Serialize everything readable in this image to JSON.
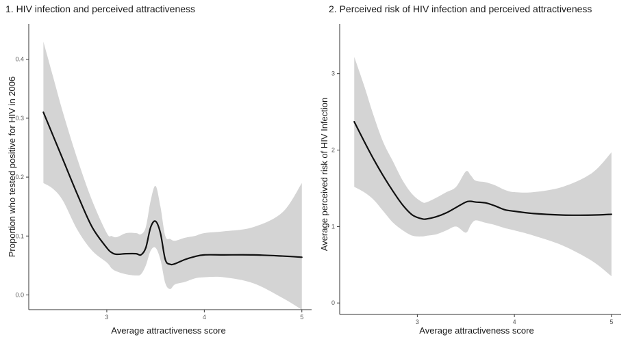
{
  "chart_data": [
    {
      "type": "line",
      "title": "1. HIV infection and perceived attractiveness",
      "xlabel": "Average attractiveness score",
      "ylabel": "Proportion who tested positive for HIV in 2006",
      "xlim": [
        2.2,
        5.1
      ],
      "ylim": [
        -0.025,
        0.46
      ],
      "xticks": [
        3,
        4,
        5
      ],
      "xtick_labels": [
        "3",
        "4",
        "5"
      ],
      "yticks": [
        0.0,
        0.1,
        0.2,
        0.3,
        0.4
      ],
      "ytick_labels": [
        "0.0",
        "0.1",
        "0.2",
        "0.3",
        "0.4"
      ],
      "grid": false,
      "legend": "none",
      "line_color": "#111111",
      "band_color": "#d4d4d4",
      "x": [
        2.35,
        2.45,
        2.55,
        2.7,
        2.85,
        3.0,
        3.05,
        3.1,
        3.2,
        3.3,
        3.35,
        3.4,
        3.45,
        3.5,
        3.55,
        3.6,
        3.65,
        3.7,
        3.8,
        3.9,
        4.0,
        4.2,
        4.5,
        4.8,
        5.0
      ],
      "y": [
        0.31,
        0.27,
        0.23,
        0.17,
        0.115,
        0.08,
        0.072,
        0.069,
        0.07,
        0.07,
        0.068,
        0.08,
        0.115,
        0.125,
        0.105,
        0.06,
        0.052,
        0.053,
        0.06,
        0.065,
        0.068,
        0.068,
        0.068,
        0.066,
        0.064
      ],
      "lower": [
        0.19,
        0.18,
        0.16,
        0.11,
        0.075,
        0.055,
        0.045,
        0.04,
        0.035,
        0.033,
        0.035,
        0.05,
        0.075,
        0.08,
        0.06,
        0.02,
        0.01,
        0.018,
        0.022,
        0.028,
        0.03,
        0.03,
        0.02,
        -0.005,
        -0.03
      ],
      "upper": [
        0.43,
        0.37,
        0.31,
        0.23,
        0.16,
        0.105,
        0.1,
        0.098,
        0.105,
        0.105,
        0.103,
        0.115,
        0.16,
        0.185,
        0.15,
        0.1,
        0.095,
        0.092,
        0.097,
        0.1,
        0.105,
        0.108,
        0.115,
        0.14,
        0.19
      ]
    },
    {
      "type": "line",
      "title": "2. Perceived risk of HIV infection and perceived attractiveness",
      "xlabel": "Average attractiveness score",
      "ylabel": "Average perceived risk of HIV Infection",
      "xlim": [
        2.2,
        5.1
      ],
      "ylim": [
        -0.15,
        3.65
      ],
      "xticks": [
        3,
        4,
        5
      ],
      "xtick_labels": [
        "3",
        "4",
        "5"
      ],
      "yticks": [
        0,
        1,
        2,
        3
      ],
      "ytick_labels": [
        "0",
        "1",
        "2",
        "3"
      ],
      "grid": false,
      "legend": "none",
      "line_color": "#111111",
      "band_color": "#d4d4d4",
      "x": [
        2.35,
        2.45,
        2.55,
        2.65,
        2.75,
        2.85,
        2.95,
        3.05,
        3.1,
        3.2,
        3.3,
        3.4,
        3.5,
        3.55,
        3.6,
        3.7,
        3.8,
        3.9,
        4.0,
        4.2,
        4.5,
        4.8,
        5.0
      ],
      "y": [
        2.37,
        2.12,
        1.88,
        1.66,
        1.46,
        1.28,
        1.15,
        1.1,
        1.1,
        1.13,
        1.18,
        1.25,
        1.32,
        1.33,
        1.32,
        1.31,
        1.27,
        1.22,
        1.2,
        1.17,
        1.15,
        1.15,
        1.16
      ],
      "lower": [
        1.52,
        1.45,
        1.35,
        1.2,
        1.05,
        0.95,
        0.88,
        0.87,
        0.88,
        0.9,
        0.95,
        1.0,
        0.92,
        1.02,
        1.08,
        1.05,
        1.02,
        0.98,
        0.95,
        0.88,
        0.75,
        0.55,
        0.35
      ],
      "upper": [
        3.22,
        2.85,
        2.45,
        2.1,
        1.85,
        1.6,
        1.42,
        1.32,
        1.32,
        1.38,
        1.45,
        1.52,
        1.72,
        1.67,
        1.6,
        1.58,
        1.54,
        1.48,
        1.45,
        1.45,
        1.52,
        1.7,
        1.97
      ]
    }
  ]
}
